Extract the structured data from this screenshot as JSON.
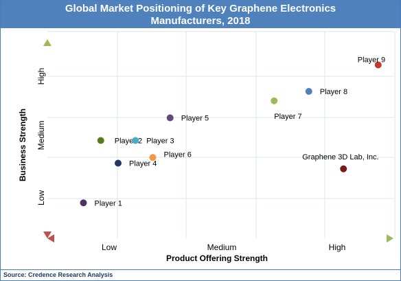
{
  "title_line1": "Global Market Positioning of Key Graphene Electronics",
  "title_line2": "Manufacturers, 2018",
  "source": "Source: Credence Research Analysis",
  "chart_data": {
    "type": "scatter",
    "xlabel": "Product Offering Strength",
    "ylabel": "Business Strength",
    "xlim": [
      0,
      10
    ],
    "ylim": [
      0,
      10
    ],
    "x_tick_labels": [
      "Low",
      "Medium",
      "High"
    ],
    "y_tick_labels": [
      "Low",
      "Medium",
      "High"
    ],
    "grid": true,
    "points": [
      {
        "label": "Player 1",
        "x": 1.0,
        "y": 1.3,
        "color": "#4a3366"
      },
      {
        "label": "Player 2",
        "x": 1.5,
        "y": 4.6,
        "color": "#5a7a1f"
      },
      {
        "label": "Player 3",
        "x": 2.5,
        "y": 4.6,
        "color": "#4bacc6"
      },
      {
        "label": "Player 4",
        "x": 2.0,
        "y": 3.4,
        "color": "#1f3864"
      },
      {
        "label": "Player 5",
        "x": 3.5,
        "y": 5.8,
        "color": "#604a7b"
      },
      {
        "label": "Player 6",
        "x": 3.0,
        "y": 3.7,
        "color": "#f79646"
      },
      {
        "label": "Player 7",
        "x": 6.5,
        "y": 6.7,
        "color": "#9bbb59"
      },
      {
        "label": "Player 8",
        "x": 7.5,
        "y": 7.2,
        "color": "#4f81bd"
      },
      {
        "label": "Player 9",
        "x": 9.5,
        "y": 8.6,
        "color": "#c0392b"
      },
      {
        "label": "Graphene 3D Lab, Inc.",
        "x": 8.5,
        "y": 3.1,
        "color": "#7b1a1a"
      }
    ]
  }
}
